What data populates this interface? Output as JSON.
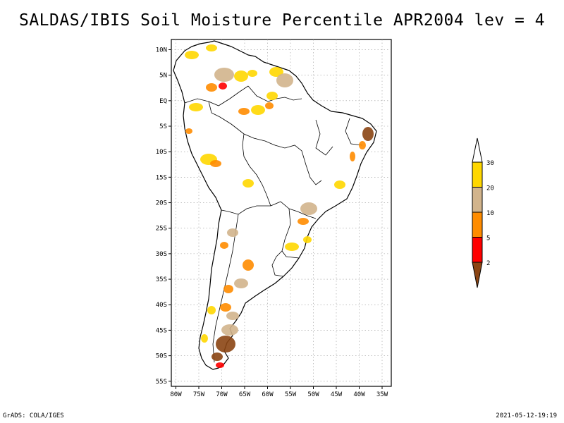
{
  "title": "SALDAS/IBIS Soil Moisture Percentile APR2004 lev = 4",
  "footer": {
    "left": "GrADS: COLA/IGES",
    "right": "2021-05-12-19:19"
  },
  "map": {
    "lon_range": [
      -81,
      -33
    ],
    "lat_range": [
      -56,
      12
    ],
    "lon_ticks": [
      {
        "lon": -80,
        "label": "80W"
      },
      {
        "lon": -75,
        "label": "75W"
      },
      {
        "lon": -70,
        "label": "70W"
      },
      {
        "lon": -65,
        "label": "65W"
      },
      {
        "lon": -60,
        "label": "60W"
      },
      {
        "lon": -55,
        "label": "55W"
      },
      {
        "lon": -50,
        "label": "50W"
      },
      {
        "lon": -45,
        "label": "45W"
      },
      {
        "lon": -40,
        "label": "40W"
      },
      {
        "lon": -35,
        "label": "35W"
      }
    ],
    "lat_ticks": [
      {
        "lat": 10,
        "label": "10N"
      },
      {
        "lat": 5,
        "label": "5N"
      },
      {
        "lat": 0,
        "label": "EQ"
      },
      {
        "lat": -5,
        "label": "5S"
      },
      {
        "lat": -10,
        "label": "10S"
      },
      {
        "lat": -15,
        "label": "15S"
      },
      {
        "lat": -20,
        "label": "20S"
      },
      {
        "lat": -25,
        "label": "25S"
      },
      {
        "lat": -30,
        "label": "30S"
      },
      {
        "lat": -35,
        "label": "35S"
      },
      {
        "lat": -40,
        "label": "40S"
      },
      {
        "lat": -45,
        "label": "45S"
      },
      {
        "lat": -50,
        "label": "50S"
      },
      {
        "lat": -55,
        "label": "55S"
      }
    ]
  },
  "legend": {
    "levels": [
      {
        "label": "30",
        "color": "#ffffff"
      },
      {
        "label": "20",
        "color": "#ffd700"
      },
      {
        "label": "10",
        "color": "#d2b48c"
      },
      {
        "label": "5",
        "color": "#ff8c00"
      },
      {
        "label": "2",
        "color": "#ff0000"
      },
      {
        "label": "",
        "color": "#8b4513"
      }
    ]
  },
  "colors": {
    "dry_lt2": "#8b4513",
    "pct_2_5": "#ff0000",
    "pct_5_10": "#ff8c00",
    "pct_10_20": "#d2b48c",
    "pct_20_30": "#ffd700"
  }
}
